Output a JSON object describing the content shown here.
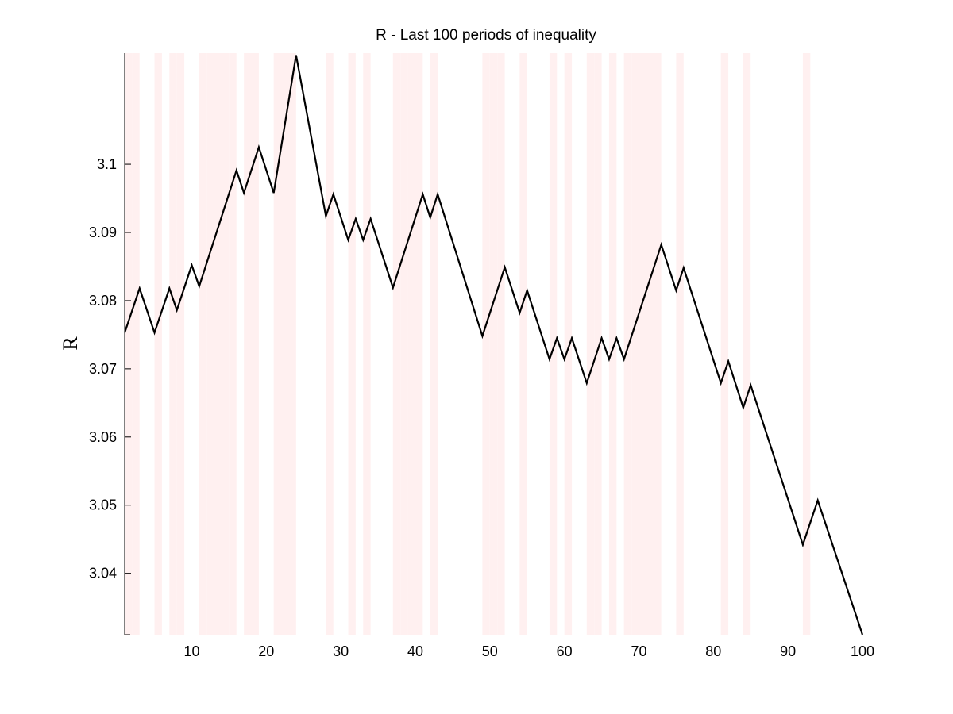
{
  "chart_data": {
    "type": "line",
    "title": "R - Last 100 periods of inequality",
    "xlabel": "",
    "ylabel": "R",
    "xlim": [
      1,
      100
    ],
    "ylim": [
      3.031,
      3.1163
    ],
    "xticks": [
      10,
      20,
      30,
      40,
      50,
      60,
      70,
      80,
      90,
      100
    ],
    "yticks": [
      3.04,
      3.05,
      3.06,
      3.07,
      3.08,
      3.09,
      3.1
    ],
    "ytick_labels": [
      "3.04",
      "3.05",
      "3.06",
      "3.07",
      "3.08",
      "3.09",
      "3.1"
    ],
    "grid": false,
    "line_color": "#000000",
    "shade_color": "#fff0f0",
    "shaded_periods": [
      2,
      3,
      6,
      8,
      9,
      12,
      13,
      14,
      15,
      16,
      18,
      19,
      22,
      23,
      24,
      29,
      32,
      34,
      38,
      39,
      40,
      41,
      43,
      50,
      51,
      52,
      55,
      59,
      61,
      64,
      65,
      67,
      69,
      70,
      71,
      72,
      73,
      76,
      82,
      85,
      93
    ],
    "series": [
      {
        "name": "",
        "x": [
          1,
          3,
          5,
          7,
          8,
          10,
          11,
          16,
          17,
          19,
          21,
          24,
          28,
          29,
          31,
          32,
          33,
          34,
          37,
          41,
          42,
          43,
          49,
          52,
          54,
          55,
          58,
          59,
          60,
          61,
          63,
          65,
          66,
          67,
          68,
          73,
          75,
          76,
          81,
          82,
          84,
          85,
          92,
          94,
          100
        ],
        "values": [
          3.0753,
          3.0818,
          3.0753,
          3.0818,
          3.0786,
          3.0852,
          3.0821,
          3.0991,
          3.0958,
          3.1025,
          3.0958,
          3.116,
          3.0924,
          3.0956,
          3.0889,
          3.092,
          3.0889,
          3.092,
          3.0819,
          3.0956,
          3.0922,
          3.0956,
          3.0748,
          3.0849,
          3.0782,
          3.0815,
          3.0714,
          3.0745,
          3.0714,
          3.0745,
          3.0679,
          3.0745,
          3.0714,
          3.0745,
          3.0714,
          3.0882,
          3.0815,
          3.0848,
          3.0679,
          3.0711,
          3.0643,
          3.0676,
          3.0442,
          3.0507,
          3.031
        ]
      }
    ]
  }
}
